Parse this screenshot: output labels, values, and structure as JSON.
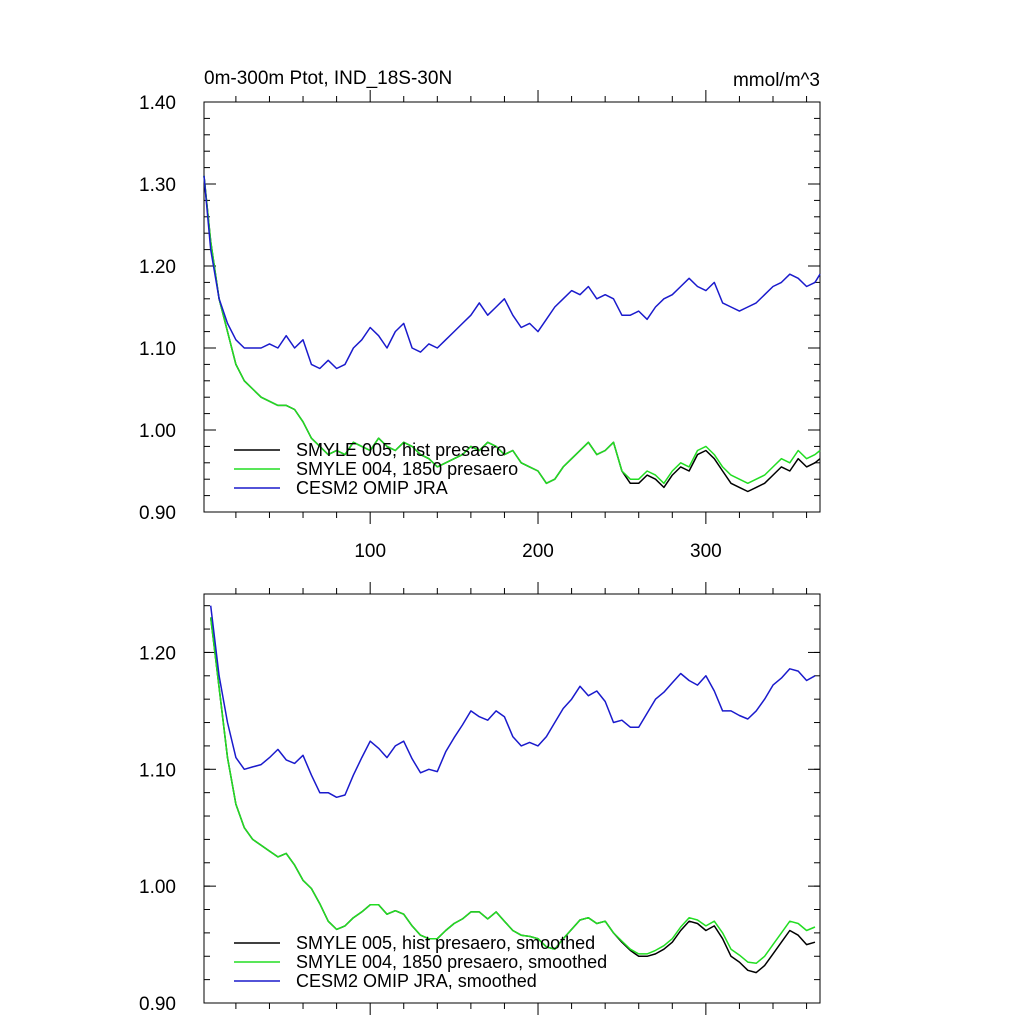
{
  "chart_data": [
    {
      "type": "line",
      "title": "0m-300m Ptot, IND_18S-30N",
      "units": "mmol/m^3",
      "xlim": [
        1,
        368
      ],
      "ylim": [
        0.9,
        1.4
      ],
      "xticks": [
        100,
        200,
        300
      ],
      "xtick_labels": [
        "100",
        "200",
        "300"
      ],
      "yticks": [
        0.9,
        1.0,
        1.1,
        1.2,
        1.3,
        1.4
      ],
      "ytick_labels": [
        "0.90",
        "1.00",
        "1.10",
        "1.20",
        "1.30",
        "1.40"
      ],
      "legend_position": "bottom-left",
      "series": [
        {
          "name": "SMYLE 005, hist presaero",
          "color": "#000000",
          "x": [
            1,
            5,
            10,
            15,
            20,
            25,
            30,
            35,
            40,
            45,
            50,
            55,
            60,
            65,
            70,
            75,
            80,
            85,
            90,
            95,
            100,
            105,
            110,
            115,
            120,
            125,
            130,
            135,
            140,
            145,
            150,
            155,
            160,
            165,
            170,
            175,
            180,
            185,
            190,
            195,
            200,
            205,
            210,
            215,
            220,
            225,
            230,
            235,
            240,
            245,
            250,
            255,
            260,
            265,
            270,
            275,
            280,
            285,
            290,
            295,
            300,
            305,
            310,
            315,
            320,
            325,
            330,
            335,
            340,
            345,
            350,
            355,
            360,
            365,
            368
          ],
          "y": [
            1.31,
            1.23,
            1.16,
            1.12,
            1.08,
            1.06,
            1.05,
            1.04,
            1.035,
            1.03,
            1.03,
            1.025,
            1.01,
            0.99,
            0.98,
            0.97,
            0.975,
            0.97,
            0.985,
            0.98,
            0.975,
            0.99,
            0.98,
            0.975,
            0.985,
            0.98,
            0.97,
            0.965,
            0.955,
            0.96,
            0.965,
            0.97,
            0.98,
            0.975,
            0.985,
            0.98,
            0.97,
            0.975,
            0.96,
            0.955,
            0.95,
            0.935,
            0.94,
            0.955,
            0.965,
            0.975,
            0.985,
            0.97,
            0.975,
            0.985,
            0.95,
            0.935,
            0.935,
            0.945,
            0.94,
            0.93,
            0.945,
            0.955,
            0.95,
            0.97,
            0.975,
            0.965,
            0.95,
            0.935,
            0.93,
            0.925,
            0.93,
            0.935,
            0.945,
            0.955,
            0.95,
            0.965,
            0.955,
            0.96,
            0.965
          ]
        },
        {
          "name": "SMYLE 004, 1850 presaero",
          "color": "#22dd22",
          "x": [
            1,
            5,
            10,
            15,
            20,
            25,
            30,
            35,
            40,
            45,
            50,
            55,
            60,
            65,
            70,
            75,
            80,
            85,
            90,
            95,
            100,
            105,
            110,
            115,
            120,
            125,
            130,
            135,
            140,
            145,
            150,
            155,
            160,
            165,
            170,
            175,
            180,
            185,
            190,
            195,
            200,
            205,
            210,
            215,
            220,
            225,
            230,
            235,
            240,
            245,
            250,
            255,
            260,
            265,
            270,
            275,
            280,
            285,
            290,
            295,
            300,
            305,
            310,
            315,
            320,
            325,
            330,
            335,
            340,
            345,
            350,
            355,
            360,
            365,
            368
          ],
          "y": [
            1.31,
            1.23,
            1.16,
            1.12,
            1.08,
            1.06,
            1.05,
            1.04,
            1.035,
            1.03,
            1.03,
            1.025,
            1.01,
            0.99,
            0.98,
            0.97,
            0.975,
            0.97,
            0.985,
            0.98,
            0.975,
            0.99,
            0.98,
            0.975,
            0.985,
            0.98,
            0.97,
            0.965,
            0.955,
            0.96,
            0.965,
            0.97,
            0.98,
            0.975,
            0.985,
            0.98,
            0.97,
            0.975,
            0.96,
            0.955,
            0.95,
            0.935,
            0.94,
            0.955,
            0.965,
            0.975,
            0.985,
            0.97,
            0.975,
            0.985,
            0.95,
            0.94,
            0.94,
            0.95,
            0.945,
            0.935,
            0.95,
            0.96,
            0.955,
            0.975,
            0.98,
            0.97,
            0.955,
            0.945,
            0.94,
            0.935,
            0.94,
            0.945,
            0.955,
            0.965,
            0.96,
            0.975,
            0.965,
            0.97,
            0.975
          ]
        },
        {
          "name": "CESM2 OMIP JRA",
          "color": "#1a1acc",
          "x": [
            1,
            5,
            10,
            15,
            20,
            25,
            30,
            35,
            40,
            45,
            50,
            55,
            60,
            65,
            70,
            75,
            80,
            85,
            90,
            95,
            100,
            105,
            110,
            115,
            120,
            125,
            130,
            135,
            140,
            145,
            150,
            155,
            160,
            165,
            170,
            175,
            180,
            185,
            190,
            195,
            200,
            205,
            210,
            215,
            220,
            225,
            230,
            235,
            240,
            245,
            250,
            255,
            260,
            265,
            270,
            275,
            280,
            285,
            290,
            295,
            300,
            305,
            310,
            315,
            320,
            325,
            330,
            335,
            340,
            345,
            350,
            355,
            360,
            365,
            368
          ],
          "y": [
            1.31,
            1.22,
            1.16,
            1.13,
            1.11,
            1.1,
            1.1,
            1.1,
            1.105,
            1.1,
            1.115,
            1.1,
            1.11,
            1.08,
            1.075,
            1.085,
            1.075,
            1.08,
            1.1,
            1.11,
            1.125,
            1.115,
            1.1,
            1.12,
            1.13,
            1.1,
            1.095,
            1.105,
            1.1,
            1.11,
            1.12,
            1.13,
            1.14,
            1.155,
            1.14,
            1.15,
            1.16,
            1.14,
            1.125,
            1.13,
            1.12,
            1.135,
            1.15,
            1.16,
            1.17,
            1.165,
            1.175,
            1.16,
            1.165,
            1.16,
            1.14,
            1.14,
            1.145,
            1.135,
            1.15,
            1.16,
            1.165,
            1.175,
            1.185,
            1.175,
            1.17,
            1.18,
            1.155,
            1.15,
            1.145,
            1.15,
            1.155,
            1.165,
            1.175,
            1.18,
            1.19,
            1.185,
            1.175,
            1.18,
            1.19
          ]
        }
      ]
    },
    {
      "type": "line",
      "title": "",
      "xlim": [
        1,
        368
      ],
      "ylim": [
        0.9,
        1.25
      ],
      "xticks": [
        100,
        200,
        300
      ],
      "xtick_labels": [
        "",
        "",
        ""
      ],
      "yticks": [
        0.9,
        1.0,
        1.1,
        1.2
      ],
      "ytick_labels": [
        "0.90",
        "1.00",
        "1.10",
        "1.20"
      ],
      "legend_position": "bottom-left",
      "series": [
        {
          "name": "SMYLE 005, hist presaero, smoothed",
          "color": "#000000",
          "x": [
            5,
            10,
            15,
            20,
            25,
            30,
            35,
            40,
            45,
            50,
            55,
            60,
            65,
            70,
            75,
            80,
            85,
            90,
            95,
            100,
            105,
            110,
            115,
            120,
            125,
            130,
            135,
            140,
            145,
            150,
            155,
            160,
            165,
            170,
            175,
            180,
            185,
            190,
            195,
            200,
            205,
            210,
            215,
            220,
            225,
            230,
            235,
            240,
            245,
            250,
            255,
            260,
            265,
            270,
            275,
            280,
            285,
            290,
            295,
            300,
            305,
            310,
            315,
            320,
            325,
            330,
            335,
            340,
            345,
            350,
            355,
            360,
            365
          ],
          "y": [
            1.23,
            1.17,
            1.11,
            1.07,
            1.05,
            1.04,
            1.035,
            1.03,
            1.025,
            1.028,
            1.018,
            1.005,
            0.998,
            0.985,
            0.97,
            0.963,
            0.966,
            0.973,
            0.978,
            0.984,
            0.984,
            0.976,
            0.979,
            0.976,
            0.966,
            0.958,
            0.955,
            0.955,
            0.962,
            0.968,
            0.972,
            0.978,
            0.978,
            0.972,
            0.978,
            0.97,
            0.962,
            0.958,
            0.957,
            0.955,
            0.948,
            0.946,
            0.955,
            0.963,
            0.971,
            0.973,
            0.968,
            0.97,
            0.96,
            0.952,
            0.945,
            0.94,
            0.94,
            0.942,
            0.946,
            0.952,
            0.962,
            0.97,
            0.968,
            0.962,
            0.966,
            0.955,
            0.94,
            0.935,
            0.928,
            0.926,
            0.932,
            0.942,
            0.952,
            0.962,
            0.958,
            0.95,
            0.952
          ]
        },
        {
          "name": "SMYLE 004, 1850 presaero, smoothed",
          "color": "#22dd22",
          "x": [
            5,
            10,
            15,
            20,
            25,
            30,
            35,
            40,
            45,
            50,
            55,
            60,
            65,
            70,
            75,
            80,
            85,
            90,
            95,
            100,
            105,
            110,
            115,
            120,
            125,
            130,
            135,
            140,
            145,
            150,
            155,
            160,
            165,
            170,
            175,
            180,
            185,
            190,
            195,
            200,
            205,
            210,
            215,
            220,
            225,
            230,
            235,
            240,
            245,
            250,
            255,
            260,
            265,
            270,
            275,
            280,
            285,
            290,
            295,
            300,
            305,
            310,
            315,
            320,
            325,
            330,
            335,
            340,
            345,
            350,
            355,
            360,
            365
          ],
          "y": [
            1.23,
            1.17,
            1.11,
            1.07,
            1.05,
            1.04,
            1.035,
            1.03,
            1.025,
            1.028,
            1.018,
            1.005,
            0.998,
            0.985,
            0.97,
            0.963,
            0.966,
            0.973,
            0.978,
            0.984,
            0.984,
            0.976,
            0.979,
            0.976,
            0.966,
            0.958,
            0.955,
            0.955,
            0.962,
            0.968,
            0.972,
            0.978,
            0.978,
            0.972,
            0.978,
            0.97,
            0.962,
            0.958,
            0.957,
            0.955,
            0.948,
            0.946,
            0.955,
            0.963,
            0.971,
            0.973,
            0.968,
            0.97,
            0.96,
            0.953,
            0.946,
            0.942,
            0.942,
            0.945,
            0.949,
            0.955,
            0.965,
            0.973,
            0.971,
            0.966,
            0.97,
            0.96,
            0.946,
            0.941,
            0.935,
            0.934,
            0.94,
            0.95,
            0.96,
            0.97,
            0.968,
            0.962,
            0.965
          ]
        },
        {
          "name": "CESM2 OMIP JRA, smoothed",
          "color": "#1a1acc",
          "x": [
            5,
            10,
            15,
            20,
            25,
            30,
            35,
            40,
            45,
            50,
            55,
            60,
            65,
            70,
            75,
            80,
            85,
            90,
            95,
            100,
            105,
            110,
            115,
            120,
            125,
            130,
            135,
            140,
            145,
            150,
            155,
            160,
            165,
            170,
            175,
            180,
            185,
            190,
            195,
            200,
            205,
            210,
            215,
            220,
            225,
            230,
            235,
            240,
            245,
            250,
            255,
            260,
            265,
            270,
            275,
            280,
            285,
            290,
            295,
            300,
            305,
            310,
            315,
            320,
            325,
            330,
            335,
            340,
            345,
            350,
            355,
            360,
            365
          ],
          "y": [
            1.24,
            1.18,
            1.14,
            1.11,
            1.1,
            1.102,
            1.104,
            1.11,
            1.117,
            1.108,
            1.105,
            1.112,
            1.095,
            1.08,
            1.08,
            1.076,
            1.078,
            1.095,
            1.11,
            1.124,
            1.118,
            1.11,
            1.12,
            1.124,
            1.109,
            1.097,
            1.1,
            1.098,
            1.115,
            1.127,
            1.138,
            1.15,
            1.145,
            1.142,
            1.15,
            1.145,
            1.128,
            1.12,
            1.123,
            1.12,
            1.128,
            1.14,
            1.152,
            1.16,
            1.171,
            1.163,
            1.167,
            1.158,
            1.14,
            1.142,
            1.136,
            1.136,
            1.148,
            1.16,
            1.166,
            1.174,
            1.182,
            1.176,
            1.172,
            1.18,
            1.167,
            1.15,
            1.15,
            1.146,
            1.143,
            1.15,
            1.16,
            1.172,
            1.178,
            1.186,
            1.184,
            1.176,
            1.18
          ]
        }
      ]
    }
  ]
}
